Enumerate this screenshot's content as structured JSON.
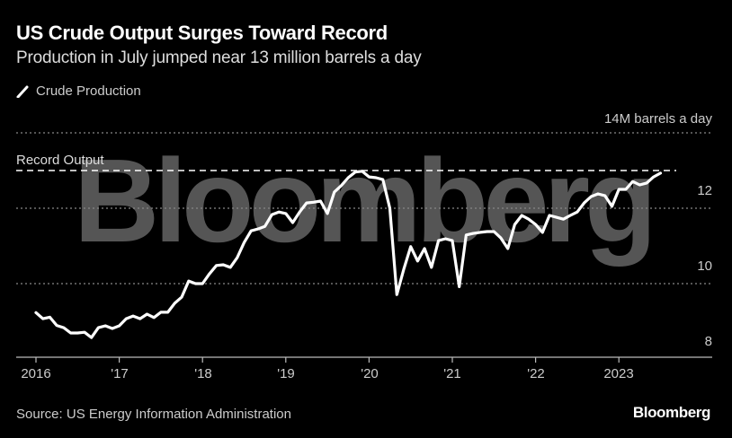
{
  "header": {
    "title": "US Crude Output Surges Toward Record",
    "subtitle": "Production in July jumped near 13 million barrels a day"
  },
  "legend": {
    "label": "Crude Production",
    "icon": "line-swatch-icon",
    "color": "#ffffff"
  },
  "axis": {
    "unit_label": "14M barrels a day",
    "y_ticks": [
      "12",
      "10",
      "8"
    ],
    "x_ticks": [
      "2016",
      "'17",
      "'18",
      "'19",
      "'20",
      "'21",
      "'22",
      "2023"
    ]
  },
  "annotation": {
    "record_label": "Record Output"
  },
  "watermark": "Bloomberg",
  "footer": {
    "source": "Source: US Energy Information Administration",
    "brand": "Bloomberg"
  },
  "colors": {
    "background": "#000000",
    "line": "#ffffff",
    "grid": "#888888",
    "watermark": "#555555"
  },
  "chart_data": {
    "type": "line",
    "title": "US Crude Output Surges Toward Record",
    "subtitle": "Production in July jumped near 13 million barrels a day",
    "xlabel": "",
    "ylabel": "Million barrels a day",
    "ylim": [
      7.6,
      14
    ],
    "yticks": [
      8,
      10,
      12,
      14
    ],
    "xticks": [
      "2016",
      "'17",
      "'18",
      "'19",
      "'20",
      "'21",
      "'22",
      "2023"
    ],
    "grid": true,
    "legend_position": "top-left",
    "annotations": [
      {
        "label": "Record Output",
        "type": "hline",
        "y": 13.0,
        "style": "dashed"
      }
    ],
    "start": "2016-01",
    "frequency": "monthly",
    "series": [
      {
        "name": "Crude Production",
        "values": [
          9.23,
          9.07,
          9.11,
          8.89,
          8.83,
          8.69,
          8.69,
          8.71,
          8.57,
          8.83,
          8.88,
          8.81,
          8.88,
          9.07,
          9.14,
          9.07,
          9.19,
          9.1,
          9.24,
          9.24,
          9.48,
          9.64,
          10.07,
          10.0,
          10.0,
          10.26,
          10.48,
          10.5,
          10.43,
          10.69,
          11.09,
          11.4,
          11.45,
          11.52,
          11.83,
          11.9,
          11.86,
          11.62,
          11.9,
          12.14,
          12.16,
          12.19,
          11.86,
          12.43,
          12.6,
          12.81,
          12.96,
          12.98,
          12.83,
          12.81,
          12.76,
          12.0,
          9.71,
          10.38,
          10.98,
          10.6,
          10.93,
          10.43,
          11.14,
          11.19,
          11.14,
          9.92,
          11.29,
          11.33,
          11.36,
          11.38,
          11.38,
          11.21,
          10.93,
          11.57,
          11.81,
          11.71,
          11.57,
          11.36,
          11.81,
          11.76,
          11.71,
          11.81,
          11.9,
          12.14,
          12.31,
          12.38,
          12.33,
          12.05,
          12.5,
          12.5,
          12.71,
          12.62,
          12.67,
          12.83,
          12.93
        ]
      }
    ]
  }
}
